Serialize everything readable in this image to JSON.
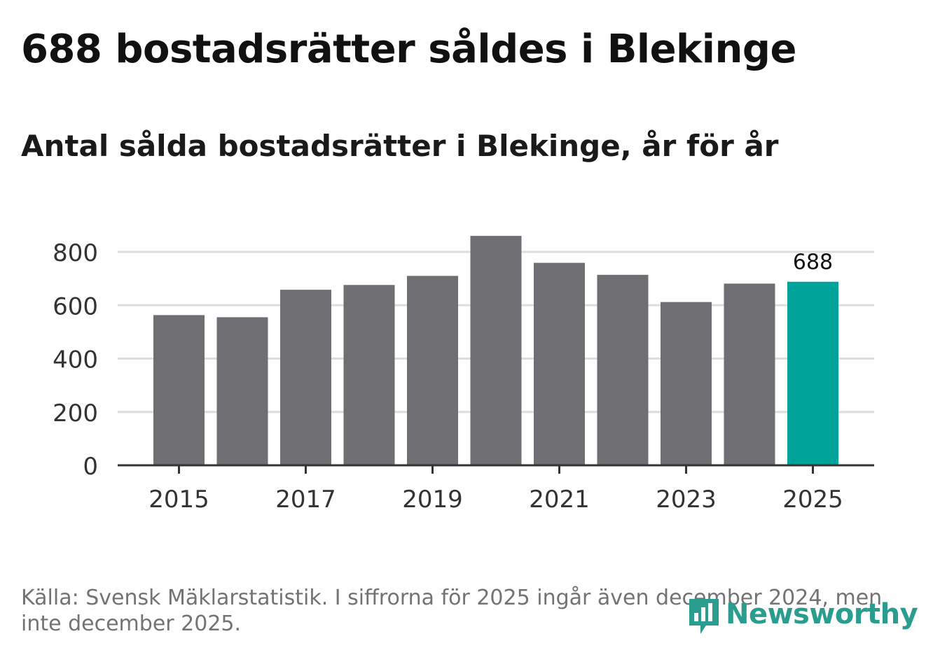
{
  "title": "688 bostadsrätter såldes i Blekinge",
  "subtitle": "Antal sålda bostadsrätter i Blekinge, år för år",
  "source": "Källa: Svensk Mäklarstatistik. I siffrorna för 2025 ingår även december 2024, men inte december 2025.",
  "logo": {
    "text": "Newsworthy",
    "icon": "newsworthy-chart-bubble-icon"
  },
  "colors": {
    "bar": "#6e6e73",
    "highlight": "#00a39a",
    "grid": "#dddddd",
    "axis": "#333333",
    "logo": "#2a9d8f"
  },
  "chart_data": {
    "type": "bar",
    "title": "Antal sålda bostadsrätter i Blekinge, år för år",
    "xlabel": "",
    "ylabel": "",
    "categories": [
      "2015",
      "2016",
      "2017",
      "2018",
      "2019",
      "2020",
      "2021",
      "2022",
      "2023",
      "2024",
      "2025"
    ],
    "values": [
      563,
      555,
      658,
      676,
      710,
      860,
      759,
      714,
      612,
      681,
      688
    ],
    "x_tick_labels": [
      "2015",
      "2017",
      "2019",
      "2021",
      "2023",
      "2025"
    ],
    "y_ticks": [
      0,
      200,
      400,
      600,
      800
    ],
    "y_tick_labels": [
      "0",
      "200",
      "400",
      "600",
      "800"
    ],
    "ylim": [
      0,
      900
    ],
    "grid": true,
    "highlight_category": "2025",
    "annotations": [
      {
        "category": "2025",
        "text": "688"
      }
    ]
  }
}
